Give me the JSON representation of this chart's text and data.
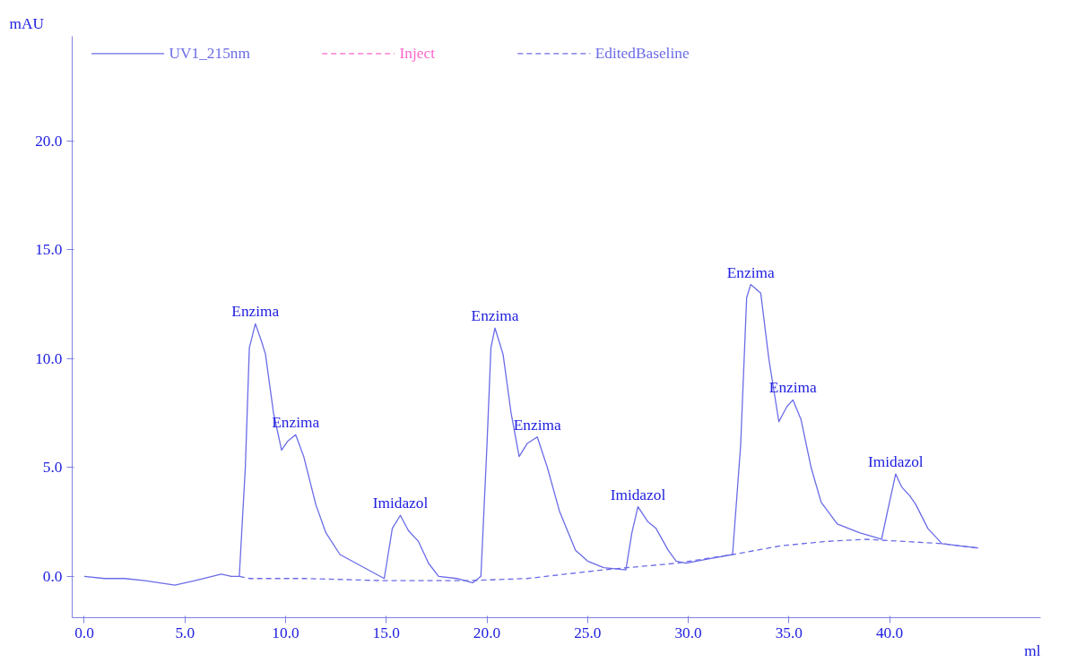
{
  "chart_data": {
    "type": "line",
    "xlabel": "ml",
    "ylabel": "mAU",
    "xlim": [
      -0.6,
      47.5
    ],
    "ylim": [
      -1.9,
      24.8
    ],
    "xticks": [
      {
        "value": 0,
        "label": "0.0"
      },
      {
        "value": 5,
        "label": "5.0"
      },
      {
        "value": 10,
        "label": "10.0"
      },
      {
        "value": 15,
        "label": "15.0"
      },
      {
        "value": 20,
        "label": "20.0"
      },
      {
        "value": 25,
        "label": "25.0"
      },
      {
        "value": 30,
        "label": "30.0"
      },
      {
        "value": 35,
        "label": "35.0"
      },
      {
        "value": 40,
        "label": "40.0"
      }
    ],
    "yticks": [
      {
        "value": 0,
        "label": "0.0"
      },
      {
        "value": 5,
        "label": "5.0"
      },
      {
        "value": 10,
        "label": "10.0"
      },
      {
        "value": 15,
        "label": "15.0"
      },
      {
        "value": 20,
        "label": "20.0"
      }
    ],
    "grid": false,
    "legend": "top left",
    "series": [
      {
        "name": "UV1_215nm",
        "color": "#6b6be8",
        "line_style": "solid",
        "x": [
          0,
          1,
          2,
          3,
          4.5,
          5.5,
          6.8,
          7.3,
          7.7,
          8.0,
          8.2,
          8.5,
          8.8,
          9.0,
          9.4,
          9.8,
          10.1,
          10.5,
          10.9,
          11.5,
          12.0,
          12.7,
          13.5,
          14.3,
          14.9,
          15.3,
          15.7,
          16.1,
          16.6,
          17.1,
          17.6,
          18.5,
          19.3,
          19.7,
          20.0,
          20.2,
          20.4,
          20.8,
          21.2,
          21.6,
          22.0,
          22.5,
          23.0,
          23.6,
          24.4,
          25.0,
          25.8,
          26.9,
          27.2,
          27.5,
          28.0,
          28.4,
          29.0,
          29.4,
          29.9,
          31.0,
          32.2,
          32.6,
          32.9,
          33.1,
          33.6,
          34.0,
          34.5,
          34.9,
          35.2,
          35.6,
          36.1,
          36.6,
          37.4,
          38.5,
          39.6,
          39.9,
          40.3,
          40.6,
          41.0,
          41.3,
          41.9,
          42.6,
          43.5,
          44.4
        ],
        "values": [
          0.0,
          -0.1,
          -0.1,
          -0.2,
          -0.4,
          -0.2,
          0.1,
          0.0,
          0.0,
          5.0,
          10.5,
          11.6,
          10.8,
          10.2,
          7.5,
          5.8,
          6.2,
          6.5,
          5.5,
          3.3,
          2.0,
          1.0,
          0.6,
          0.2,
          -0.1,
          2.2,
          2.8,
          2.1,
          1.6,
          0.6,
          0.0,
          -0.1,
          -0.3,
          0.0,
          6.0,
          10.5,
          11.4,
          10.2,
          7.5,
          5.5,
          6.1,
          6.4,
          5.0,
          3.0,
          1.2,
          0.7,
          0.4,
          0.3,
          2.0,
          3.2,
          2.5,
          2.2,
          1.2,
          0.7,
          0.6,
          0.8,
          1.0,
          6.0,
          12.8,
          13.4,
          13.0,
          10.0,
          7.1,
          7.8,
          8.1,
          7.2,
          5.0,
          3.4,
          2.4,
          2.0,
          1.7,
          3.0,
          4.7,
          4.1,
          3.7,
          3.3,
          2.2,
          1.5,
          1.4,
          1.3
        ]
      },
      {
        "name": "Inject",
        "color": "#ff66cc",
        "line_style": "dashed"
      },
      {
        "name": "EditedBaseline",
        "color": "#6b6be8",
        "line_style": "dashed",
        "x": [
          7.7,
          8.2,
          11,
          14.9,
          19.0,
          22,
          25.8,
          29.4,
          32.2,
          34.6,
          36.8,
          38.8,
          40.8,
          42.6,
          44.4
        ],
        "values": [
          0.0,
          -0.1,
          -0.1,
          -0.2,
          -0.2,
          -0.1,
          0.3,
          0.6,
          1.0,
          1.4,
          1.6,
          1.7,
          1.6,
          1.5,
          1.3
        ]
      }
    ],
    "annotations": [
      {
        "text": "Enzima",
        "x": 8.5,
        "y": 11.6
      },
      {
        "text": "Enzima",
        "x": 10.5,
        "y": 6.5
      },
      {
        "text": "Imidazol",
        "x": 15.7,
        "y": 2.8
      },
      {
        "text": "Enzima",
        "x": 20.4,
        "y": 11.4
      },
      {
        "text": "Enzima",
        "x": 22.5,
        "y": 6.4
      },
      {
        "text": "Imidazol",
        "x": 27.5,
        "y": 3.2
      },
      {
        "text": "Enzima",
        "x": 33.1,
        "y": 13.4
      },
      {
        "text": "Enzima",
        "x": 35.2,
        "y": 8.1
      },
      {
        "text": "Imidazol",
        "x": 40.3,
        "y": 4.7
      }
    ]
  }
}
